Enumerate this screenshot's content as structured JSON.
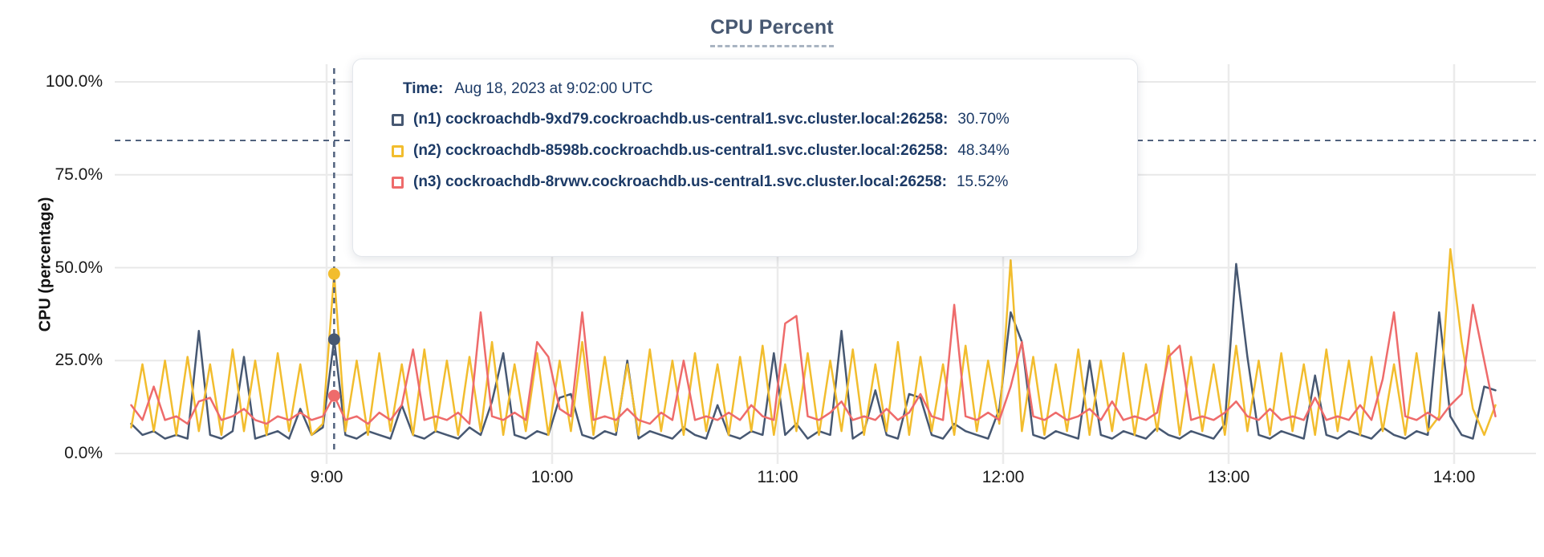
{
  "title": "CPU Percent",
  "y_axis": {
    "label": "CPU (percentage)",
    "ticks": [
      "0.0%",
      "25.0%",
      "50.0%",
      "75.0%",
      "100.0%"
    ]
  },
  "x_axis": {
    "ticks": [
      "9:00",
      "10:00",
      "11:00",
      "12:00",
      "13:00",
      "14:00"
    ]
  },
  "tooltip": {
    "time_label": "Time:",
    "time_value": "Aug 18, 2023 at 9:02:00 UTC",
    "series": [
      {
        "label": "(n1) cockroachdb-9xd79.cockroachdb.us-central1.svc.cluster.local:26258:",
        "value": "30.70%",
        "color": "#475872"
      },
      {
        "label": "(n2) cockroachdb-8598b.cockroachdb.us-central1.svc.cluster.local:26258:",
        "value": "48.34%",
        "color": "#f2bd2e"
      },
      {
        "label": "(n3) cockroachdb-8rvwv.cockroachdb.us-central1.svc.cluster.local:26258:",
        "value": "15.52%",
        "color": "#ee6b6b"
      }
    ]
  },
  "chart_data": {
    "type": "line",
    "title": "CPU Percent",
    "xlabel": "",
    "ylabel": "CPU (percentage)",
    "ylim": [
      0,
      100
    ],
    "grid": true,
    "legend_position": "tooltip",
    "x_unit": "hours_utc",
    "x_start": 8.1333,
    "x_step": 0.05,
    "x_tick_values": [
      9,
      10,
      11,
      12,
      13,
      14
    ],
    "x_ticks": [
      "9:00",
      "10:00",
      "11:00",
      "12:00",
      "13:00",
      "14:00"
    ],
    "y_tick_values": [
      0,
      25,
      50,
      75,
      100
    ],
    "hover": {
      "time": "Aug 18, 2023 at 9:02:00 UTC",
      "x": 9.0333,
      "values": [
        30.7,
        48.34,
        15.52
      ]
    },
    "series": [
      {
        "name": "(n1) cockroachdb-9xd79.cockroachdb.us-central1.svc.cluster.local:26258",
        "color": "#475872",
        "values": [
          8,
          5,
          6,
          4,
          5,
          4,
          33,
          5,
          4,
          6,
          26,
          4,
          5,
          6,
          4,
          12,
          5,
          7,
          30.7,
          5,
          4,
          6,
          5,
          4,
          13,
          5,
          4,
          6,
          5,
          4,
          7,
          5,
          14,
          27,
          5,
          4,
          6,
          5,
          15,
          16,
          5,
          4,
          6,
          5,
          25,
          4,
          6,
          5,
          4,
          7,
          5,
          4,
          13,
          5,
          4,
          6,
          5,
          27,
          5,
          8,
          4,
          6,
          5,
          33,
          4,
          6,
          17,
          5,
          4,
          16,
          15,
          5,
          4,
          8,
          6,
          5,
          4,
          12,
          38,
          30,
          5,
          4,
          6,
          5,
          4,
          25,
          5,
          4,
          6,
          5,
          4,
          7,
          5,
          4,
          6,
          5,
          4,
          8,
          51,
          26,
          5,
          4,
          6,
          5,
          4,
          21,
          5,
          4,
          6,
          5,
          4,
          7,
          5,
          4,
          6,
          5,
          38,
          10,
          5,
          4,
          18,
          17
        ]
      },
      {
        "name": "(n2) cockroachdb-8598b.cockroachdb.us-central1.svc.cluster.local:26258",
        "color": "#f2bd2e",
        "values": [
          7,
          24,
          6,
          25,
          5,
          26,
          6,
          24,
          5,
          28,
          6,
          25,
          5,
          27,
          6,
          24,
          5,
          8,
          48.34,
          6,
          25,
          5,
          27,
          6,
          24,
          5,
          28,
          6,
          25,
          5,
          26,
          6,
          30,
          5,
          24,
          6,
          27,
          5,
          25,
          6,
          30,
          5,
          26,
          6,
          24,
          5,
          28,
          6,
          25,
          5,
          27,
          6,
          24,
          5,
          26,
          6,
          29,
          5,
          24,
          6,
          27,
          5,
          25,
          6,
          28,
          5,
          24,
          6,
          30,
          5,
          26,
          6,
          24,
          5,
          29,
          6,
          25,
          8,
          52,
          6,
          26,
          5,
          24,
          6,
          28,
          5,
          25,
          6,
          27,
          5,
          24,
          6,
          29,
          5,
          26,
          6,
          24,
          5,
          29,
          6,
          25,
          5,
          27,
          6,
          24,
          5,
          28,
          6,
          25,
          5,
          26,
          6,
          24,
          5,
          27,
          6,
          10,
          55,
          30,
          12,
          5,
          13
        ]
      },
      {
        "name": "(n3) cockroachdb-8rvwv.cockroachdb.us-central1.svc.cluster.local:26258",
        "color": "#ee6b6b",
        "values": [
          13,
          9,
          18,
          9,
          10,
          8,
          14,
          15,
          9,
          10,
          12,
          9,
          8,
          10,
          9,
          11,
          9,
          10,
          15.52,
          9,
          10,
          8,
          11,
          9,
          13,
          28,
          9,
          10,
          9,
          11,
          8,
          38,
          10,
          9,
          11,
          9,
          30,
          26,
          12,
          10,
          38,
          9,
          10,
          9,
          12,
          9,
          8,
          11,
          9,
          25,
          9,
          10,
          9,
          11,
          9,
          13,
          10,
          9,
          35,
          37,
          10,
          9,
          11,
          14,
          9,
          10,
          9,
          12,
          9,
          11,
          16,
          10,
          9,
          40,
          10,
          9,
          11,
          9,
          18,
          30,
          10,
          9,
          11,
          9,
          10,
          12,
          9,
          14,
          9,
          10,
          9,
          11,
          26,
          29,
          9,
          10,
          9,
          11,
          14,
          10,
          9,
          12,
          9,
          10,
          9,
          15,
          9,
          10,
          9,
          13,
          9,
          20,
          38,
          10,
          9,
          11,
          9,
          13,
          16,
          40,
          25,
          10
        ]
      }
    ]
  }
}
